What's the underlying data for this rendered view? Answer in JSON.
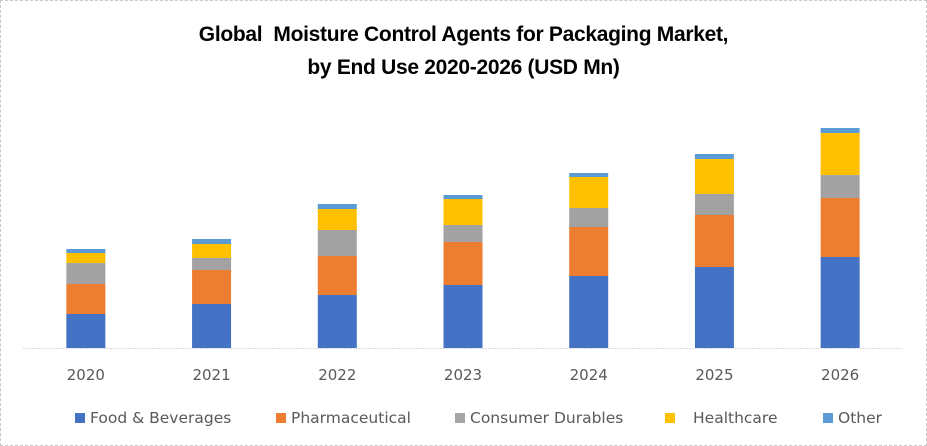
{
  "chart_data": {
    "type": "bar",
    "stacked": true,
    "title": "Global  Moisture Control Agents for Packaging Market,",
    "subtitle": "by End Use 2020-2026 (USD Mn)",
    "xlabel": "",
    "ylabel": "",
    "y_axis_visible": false,
    "value_units_note": "relative estimates (no y-axis shown)",
    "ylim": [
      0,
      230
    ],
    "grid": false,
    "legend_position": "bottom",
    "categories": [
      "2020",
      "2021",
      "2022",
      "2023",
      "2024",
      "2025",
      "2026"
    ],
    "series": [
      {
        "name": "Food & Beverages",
        "color": "#4472C4",
        "values": [
          34,
          44,
          53,
          63,
          72,
          81,
          91
        ]
      },
      {
        "name": "Pharmaceutical",
        "color": "#ED7D31",
        "values": [
          30,
          34,
          39,
          43,
          49,
          52,
          59
        ]
      },
      {
        "name": "Consumer Durables",
        "color": "#A5A5A5",
        "values": [
          21,
          12,
          26,
          17,
          19,
          21,
          23
        ]
      },
      {
        "name": "Healthcare",
        "color": "#FFC000",
        "values": [
          10,
          14,
          21,
          26,
          31,
          35,
          42
        ]
      },
      {
        "name": "Other",
        "color": "#5B9BD5",
        "values": [
          4,
          5,
          5,
          4,
          4,
          5,
          5
        ]
      }
    ]
  }
}
